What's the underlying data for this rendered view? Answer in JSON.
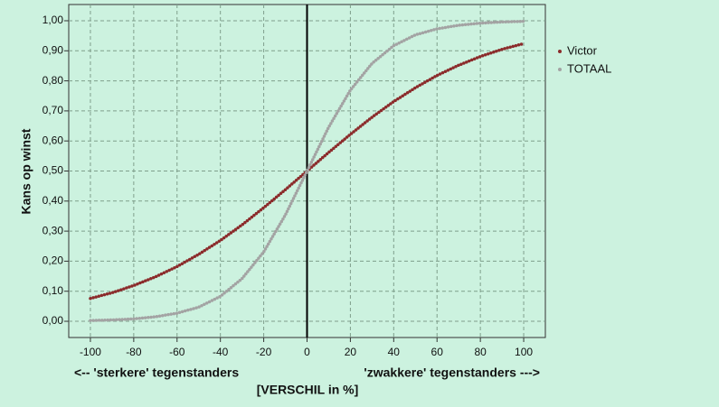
{
  "chart_data": {
    "type": "line",
    "y_label": "Kans op winst",
    "x_label": "[VERSCHIL in %]",
    "x_note_left": "<-- 'sterkere' tegenstanders",
    "x_note_right": "'zwakkere' tegenstanders --->",
    "x": [
      -100,
      -90,
      -80,
      -70,
      -60,
      -50,
      -40,
      -30,
      -20,
      -10,
      0,
      10,
      20,
      30,
      40,
      50,
      60,
      70,
      80,
      90,
      100
    ],
    "series": [
      {
        "name": "Victor",
        "color": "#8b2b2b",
        "values": [
          0.076,
          0.095,
          0.119,
          0.148,
          0.182,
          0.223,
          0.269,
          0.321,
          0.378,
          0.438,
          0.5,
          0.562,
          0.622,
          0.679,
          0.731,
          0.777,
          0.818,
          0.852,
          0.881,
          0.905,
          0.924
        ]
      },
      {
        "name": "TOTAAL",
        "color": "#a3a3a3",
        "values": [
          0.0025,
          0.0045,
          0.008,
          0.015,
          0.027,
          0.047,
          0.083,
          0.142,
          0.231,
          0.354,
          0.5,
          0.646,
          0.769,
          0.858,
          0.917,
          0.953,
          0.973,
          0.985,
          0.992,
          0.996,
          0.998
        ]
      }
    ],
    "xlim": [
      -110,
      110
    ],
    "ylim": [
      -0.054,
      1.054
    ],
    "xticks": [
      -100,
      -80,
      -60,
      -40,
      -20,
      0,
      20,
      40,
      60,
      80,
      100
    ],
    "yticks": [
      {
        "value": 0,
        "label": "0,00"
      },
      {
        "value": 0.1,
        "label": "0,10"
      },
      {
        "value": 0.2,
        "label": "0,20"
      },
      {
        "value": 0.3,
        "label": "0,30"
      },
      {
        "value": 0.4,
        "label": "0,40"
      },
      {
        "value": 0.5,
        "label": "0,50"
      },
      {
        "value": 0.6,
        "label": "0,60"
      },
      {
        "value": 0.7,
        "label": "0,70"
      },
      {
        "value": 0.8,
        "label": "0,80"
      },
      {
        "value": 0.9,
        "label": "0,90"
      },
      {
        "value": 1,
        "label": "1,00"
      }
    ],
    "reference_x": 0,
    "grid": true,
    "legend": "right"
  }
}
